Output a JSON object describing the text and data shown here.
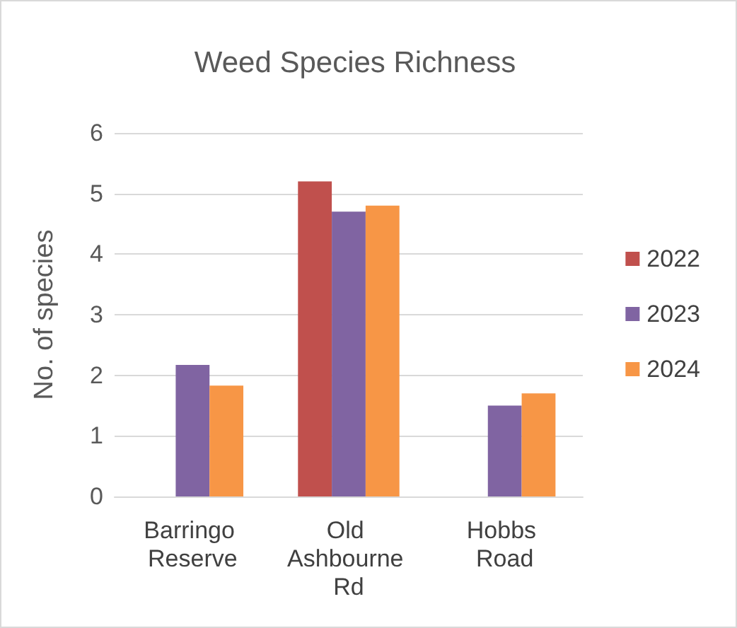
{
  "chart_data": {
    "type": "bar",
    "title": "Weed Species Richness",
    "ylabel": "No. of species",
    "categories": [
      "Barringo Reserve",
      "Old Ashbourne Rd",
      "Hobbs Road"
    ],
    "series": [
      {
        "name": "2022",
        "color": "#c0504d",
        "values": [
          null,
          5.2,
          null
        ]
      },
      {
        "name": "2023",
        "color": "#8064a2",
        "values": [
          2.17,
          4.7,
          1.5
        ]
      },
      {
        "name": "2024",
        "color": "#f79646",
        "values": [
          1.83,
          4.8,
          1.7
        ]
      }
    ],
    "ylim": [
      0,
      6
    ],
    "yticks": [
      0,
      1,
      2,
      3,
      4,
      5,
      6
    ],
    "grid": "y",
    "legend": "right"
  }
}
